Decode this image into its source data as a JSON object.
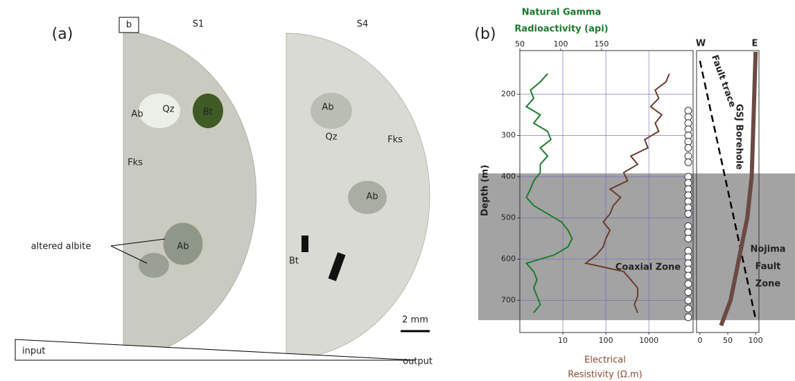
{
  "panel_a": {
    "label": "(a)",
    "box_label": "b",
    "samples": [
      {
        "name": "S1",
        "minerals": [
          "Ab",
          "Qz",
          "Bt",
          "Fks",
          "Ab"
        ]
      },
      {
        "name": "S4",
        "minerals": [
          "Ab",
          "Qz",
          "Fks",
          "Ab",
          "Bt"
        ]
      }
    ],
    "annotation": "altered albite",
    "scale_bar": "2 mm",
    "gradient": [
      "input",
      "output"
    ]
  },
  "chart_data": [
    {
      "type": "line",
      "panel_label": "(b)",
      "x_label": [
        "Natural Gamma",
        "Radioactivity (api)"
      ],
      "x2_label": [
        "Electrical",
        "Resistivity (Ω.m)"
      ],
      "ylabel": "Depth (m)",
      "y": [
        150,
        170,
        190,
        210,
        230,
        250,
        270,
        290,
        310,
        330,
        350,
        370,
        390,
        410,
        430,
        450,
        470,
        490,
        510,
        530,
        550,
        570,
        590,
        610,
        630,
        650,
        670,
        690,
        710,
        730
      ],
      "ylim": [
        94,
        778
      ],
      "y_inverted": true,
      "yticks": [
        200,
        300,
        400,
        500,
        600,
        700
      ],
      "xlim": [
        50,
        262
      ],
      "xticks": [
        50,
        100,
        150
      ],
      "x2lim": [
        1,
        10700
      ],
      "x2ticks": [
        10,
        100,
        1000
      ],
      "x2_log": true,
      "grid": true,
      "series": [
        {
          "color": "#1e7a2e",
          "axis": "x",
          "values": [
            84,
            75,
            63,
            67,
            58,
            75,
            67,
            84,
            88,
            75,
            84,
            75,
            75,
            67,
            63,
            58,
            67,
            84,
            101,
            109,
            114,
            109,
            92,
            58,
            67,
            71,
            67,
            71,
            75,
            67
          ]
        },
        {
          "color": "#6b3b2f",
          "axis": "x2",
          "values": [
            3000,
            2500,
            1400,
            1700,
            1100,
            2000,
            1400,
            1700,
            800,
            950,
            380,
            550,
            260,
            320,
            125,
            220,
            150,
            125,
            87,
            125,
            100,
            87,
            60,
            34,
            260,
            380,
            550,
            550,
            460,
            550
          ]
        }
      ],
      "samples": [
        240,
        255,
        270,
        285,
        300,
        315,
        330,
        350,
        365,
        400,
        415,
        430,
        445,
        460,
        475,
        490,
        520,
        535,
        550,
        580,
        595,
        610,
        625,
        640,
        660,
        680,
        700,
        720,
        741
      ],
      "annotation": "Coaxial Zone",
      "zone": {
        "range": [
          392,
          748
        ],
        "label": [
          "Nojima",
          "Fault",
          "Zone"
        ]
      }
    },
    {
      "type": "line",
      "xlim": [
        -6,
        106
      ],
      "xticks": [
        0,
        50,
        100
      ],
      "x_end_labels": [
        "W",
        "E"
      ],
      "ylim": [
        94,
        778
      ],
      "y_inverted": true,
      "series": [
        {
          "name": "Fault trace",
          "color": "#000000",
          "dashed": true,
          "x": [
            0,
            100
          ],
          "y": [
            119,
            745
          ]
        },
        {
          "name": "GSJ Borehole",
          "color": "#6b4a44",
          "x": [
            100,
            93,
            85,
            70,
            55,
            38
          ],
          "y": [
            97,
            400,
            500,
            600,
            700,
            761
          ]
        }
      ]
    }
  ]
}
